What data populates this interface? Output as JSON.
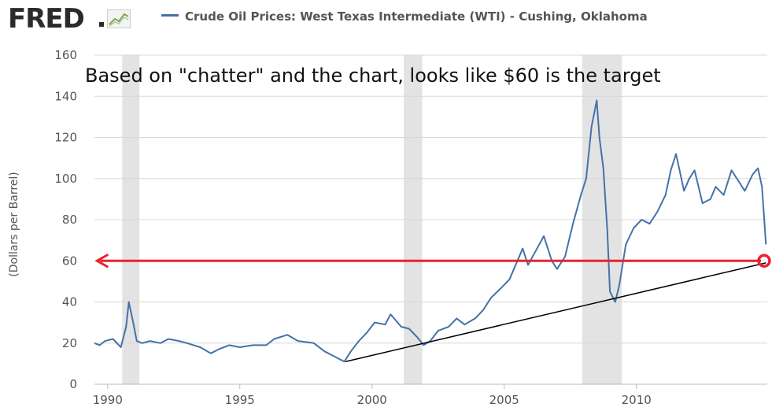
{
  "brand": {
    "name": "FRED",
    "icon": "trend-line-chart-icon"
  },
  "chart_data": {
    "type": "line",
    "title": "Crude Oil Prices: West Texas Intermediate (WTI) - Cushing, Oklahoma",
    "ylabel": "(Dollars per Barrel)",
    "xlabel": "",
    "annotation": "Based on \"chatter\" and the chart, looks like $60 is the target",
    "xlim": [
      1989.5,
      2014.95
    ],
    "ylim": [
      0,
      160
    ],
    "xticks": [
      1990,
      1995,
      2000,
      2005,
      2010
    ],
    "xtick_labels": [
      "1990",
      "1995",
      "2000",
      "2005",
      "2010"
    ],
    "yticks": [
      0,
      20,
      40,
      60,
      80,
      100,
      120,
      140,
      160
    ],
    "ytick_labels": [
      "0",
      "20",
      "40",
      "60",
      "80",
      "100",
      "120",
      "140",
      "160"
    ],
    "grid": "horizontal",
    "legend_position": "top",
    "recessions": [
      [
        1990.55,
        1991.2
      ],
      [
        2001.2,
        2001.9
      ],
      [
        2007.95,
        2009.45
      ]
    ],
    "series": [
      {
        "name": "Crude Oil Prices: West Texas Intermediate (WTI) - Cushing, Oklahoma",
        "color": "#4572a7",
        "x": [
          1989.5,
          1989.7,
          1989.9,
          1990.2,
          1990.5,
          1990.7,
          1990.8,
          1990.95,
          1991.1,
          1991.3,
          1991.6,
          1992.0,
          1992.3,
          1992.7,
          1993.0,
          1993.5,
          1993.9,
          1994.2,
          1994.6,
          1995.0,
          1995.5,
          1996.0,
          1996.3,
          1996.8,
          1997.2,
          1997.8,
          1998.2,
          1998.5,
          1998.8,
          1998.95,
          1999.2,
          1999.5,
          1999.8,
          2000.1,
          2000.5,
          2000.7,
          2000.9,
          2001.1,
          2001.4,
          2001.7,
          2001.95,
          2002.2,
          2002.5,
          2002.9,
          2003.2,
          2003.5,
          2003.9,
          2004.2,
          2004.5,
          2004.9,
          2005.2,
          2005.5,
          2005.7,
          2005.9,
          2006.2,
          2006.5,
          2006.8,
          2007.0,
          2007.3,
          2007.6,
          2007.9,
          2008.1,
          2008.3,
          2008.5,
          2008.6,
          2008.75,
          2008.9,
          2009.0,
          2009.2,
          2009.35,
          2009.6,
          2009.9,
          2010.2,
          2010.5,
          2010.8,
          2011.1,
          2011.3,
          2011.5,
          2011.8,
          2012.0,
          2012.2,
          2012.5,
          2012.8,
          2013.0,
          2013.3,
          2013.6,
          2013.9,
          2014.1,
          2014.4,
          2014.6,
          2014.75,
          2014.9
        ],
        "y": [
          20,
          19,
          21,
          22,
          18,
          28,
          40,
          31,
          21,
          20,
          21,
          20,
          22,
          21,
          20,
          18,
          15,
          17,
          19,
          18,
          19,
          19,
          22,
          24,
          21,
          20,
          16,
          14,
          12,
          11,
          16,
          21,
          25,
          30,
          29,
          34,
          31,
          28,
          27,
          23,
          19,
          21,
          26,
          28,
          32,
          29,
          32,
          36,
          42,
          47,
          51,
          60,
          66,
          58,
          65,
          72,
          60,
          56,
          62,
          78,
          92,
          100,
          125,
          138,
          120,
          105,
          75,
          45,
          40,
          48,
          68,
          76,
          80,
          78,
          84,
          92,
          104,
          112,
          94,
          100,
          104,
          88,
          90,
          96,
          92,
          104,
          98,
          94,
          102,
          105,
          96,
          68
        ]
      }
    ],
    "overlays": {
      "target_price": 60,
      "target_arrow": {
        "from": 2014.95,
        "to": 1989.6,
        "y": 60,
        "color": "#e8232f"
      },
      "trend_line": {
        "x": [
          1999.0,
          2014.9
        ],
        "y": [
          11,
          59
        ],
        "color": "#000000"
      },
      "target_marker": {
        "x": 2014.95,
        "y": 60,
        "color": "#e8232f"
      }
    }
  }
}
